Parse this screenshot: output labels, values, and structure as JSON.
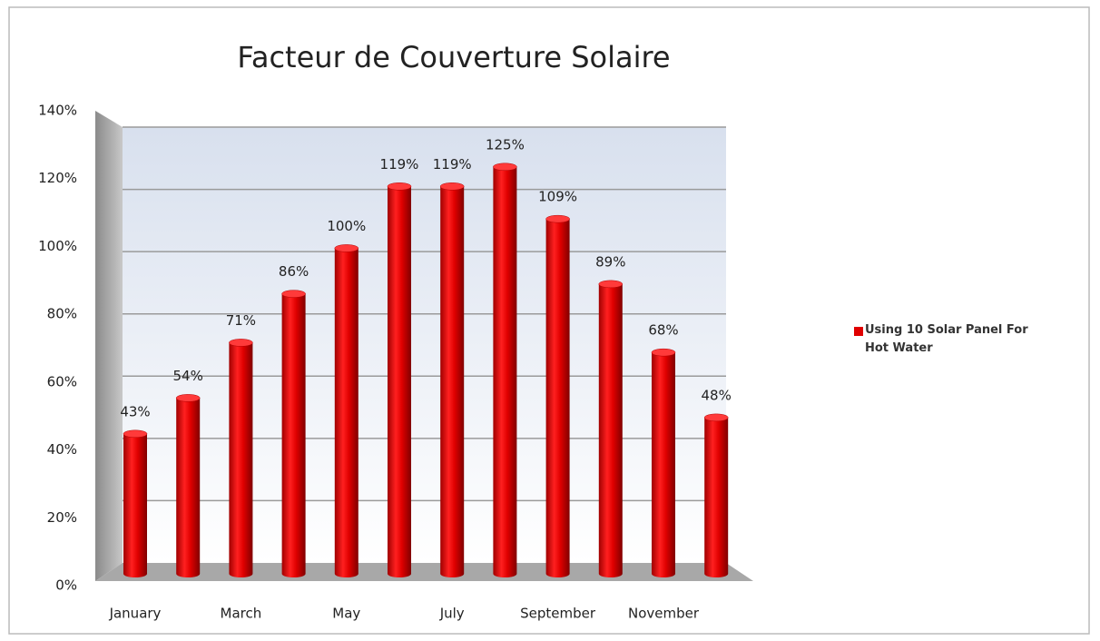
{
  "chart_data": {
    "type": "bar",
    "title": "Facteur de Couverture Solaire",
    "categories": [
      "January",
      null,
      "March",
      null,
      "May",
      null,
      "July",
      null,
      "September",
      null,
      "November",
      null
    ],
    "series": [
      {
        "name": "Using 10 Solar Panel For Hot Water",
        "color": "#e00000",
        "values": [
          43,
          54,
          71,
          86,
          100,
          119,
          119,
          125,
          109,
          89,
          68,
          48
        ],
        "value_labels": [
          "43%",
          "54%",
          "71%",
          "86%",
          "100%",
          "119%",
          "119%",
          "125%",
          "109%",
          "89%",
          "68%",
          "48%"
        ]
      }
    ],
    "ylim": [
      0,
      140
    ],
    "yticks": [
      {
        "value": 0,
        "label": "0%"
      },
      {
        "value": 20,
        "label": "20%"
      },
      {
        "value": 40,
        "label": "40%"
      },
      {
        "value": 60,
        "label": "60%"
      },
      {
        "value": 80,
        "label": "80%"
      },
      {
        "value": 100,
        "label": "100%"
      },
      {
        "value": 120,
        "label": "120%"
      },
      {
        "value": 140,
        "label": "140%"
      }
    ],
    "grid": true,
    "legend": "right"
  }
}
